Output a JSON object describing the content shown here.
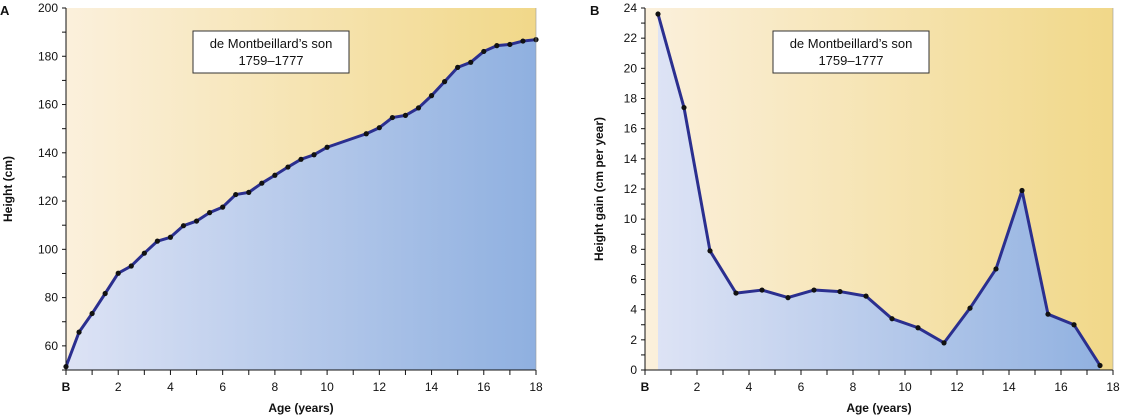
{
  "chart_data": [
    {
      "type": "area",
      "panel_label": "A",
      "annotation_line1": "de Montbeillard’s son",
      "annotation_line2": "1759–1777",
      "xlabel": "Age (years)",
      "ylabel": "Height (cm)",
      "xlim": [
        0,
        18
      ],
      "ylim": [
        50,
        200
      ],
      "x_ticks": [
        "B",
        "2",
        "4",
        "6",
        "8",
        "10",
        "12",
        "14",
        "16",
        "18"
      ],
      "y_ticks": [
        "60",
        "80",
        "100",
        "120",
        "140",
        "160",
        "180",
        "200"
      ],
      "grid": false,
      "colors": {
        "line": "#2b2f8f",
        "point": "#111111",
        "area_left": "#dde3f5",
        "area_right": "#8fb0e0",
        "bg_left": "#fbf0dc",
        "bg_right": "#f1d889"
      },
      "x": [
        0,
        0.5,
        1,
        1.5,
        2,
        2.5,
        3,
        3.5,
        4,
        4.5,
        5,
        5.5,
        6,
        6.5,
        7,
        7.5,
        8,
        8.5,
        9,
        9.5,
        10,
        11.5,
        12,
        12.5,
        13,
        13.5,
        14,
        14.5,
        15,
        15.5,
        16,
        16.5,
        17,
        17.5,
        18
      ],
      "y": [
        51.4,
        65.7,
        73.4,
        81.7,
        90.1,
        93.1,
        98.4,
        103.4,
        105,
        109.8,
        111.7,
        115.2,
        117.5,
        122.7,
        123.6,
        127.4,
        130.7,
        134.1,
        137.3,
        139.2,
        142.3,
        147.9,
        150.4,
        154.6,
        155.5,
        158.6,
        163.7,
        169.5,
        175.4,
        177.5,
        182,
        184.4,
        184.9,
        186.3,
        186.9
      ]
    },
    {
      "type": "area",
      "panel_label": "B",
      "annotation_line1": "de Montbeillard’s son",
      "annotation_line2": "1759–1777",
      "xlabel": "Age (years)",
      "ylabel": "Height gain (cm per year)",
      "xlim": [
        0,
        18
      ],
      "ylim": [
        0,
        24
      ],
      "x_ticks": [
        "B",
        "2",
        "4",
        "6",
        "8",
        "10",
        "12",
        "14",
        "16",
        "18"
      ],
      "y_ticks": [
        "0",
        "2",
        "4",
        "6",
        "8",
        "10",
        "12",
        "14",
        "16",
        "18",
        "20",
        "22",
        "24"
      ],
      "grid": false,
      "colors": {
        "line": "#2b2f8f",
        "point": "#111111",
        "area_left": "#dde3f5",
        "area_right": "#8fb0e0",
        "bg_left": "#fbf0dc",
        "bg_right": "#f1d889"
      },
      "x": [
        0.5,
        1.5,
        2.5,
        3.5,
        4.5,
        5.5,
        6.5,
        7.5,
        8.5,
        9.5,
        10.5,
        11.5,
        12.5,
        13.5,
        14.5,
        15.5,
        16.5,
        17.5
      ],
      "y": [
        23.6,
        17.4,
        7.9,
        5.1,
        5.3,
        4.8,
        5.3,
        5.2,
        4.9,
        3.4,
        2.8,
        1.8,
        4.1,
        6.7,
        11.9,
        3.7,
        3.0,
        0.3
      ]
    }
  ]
}
